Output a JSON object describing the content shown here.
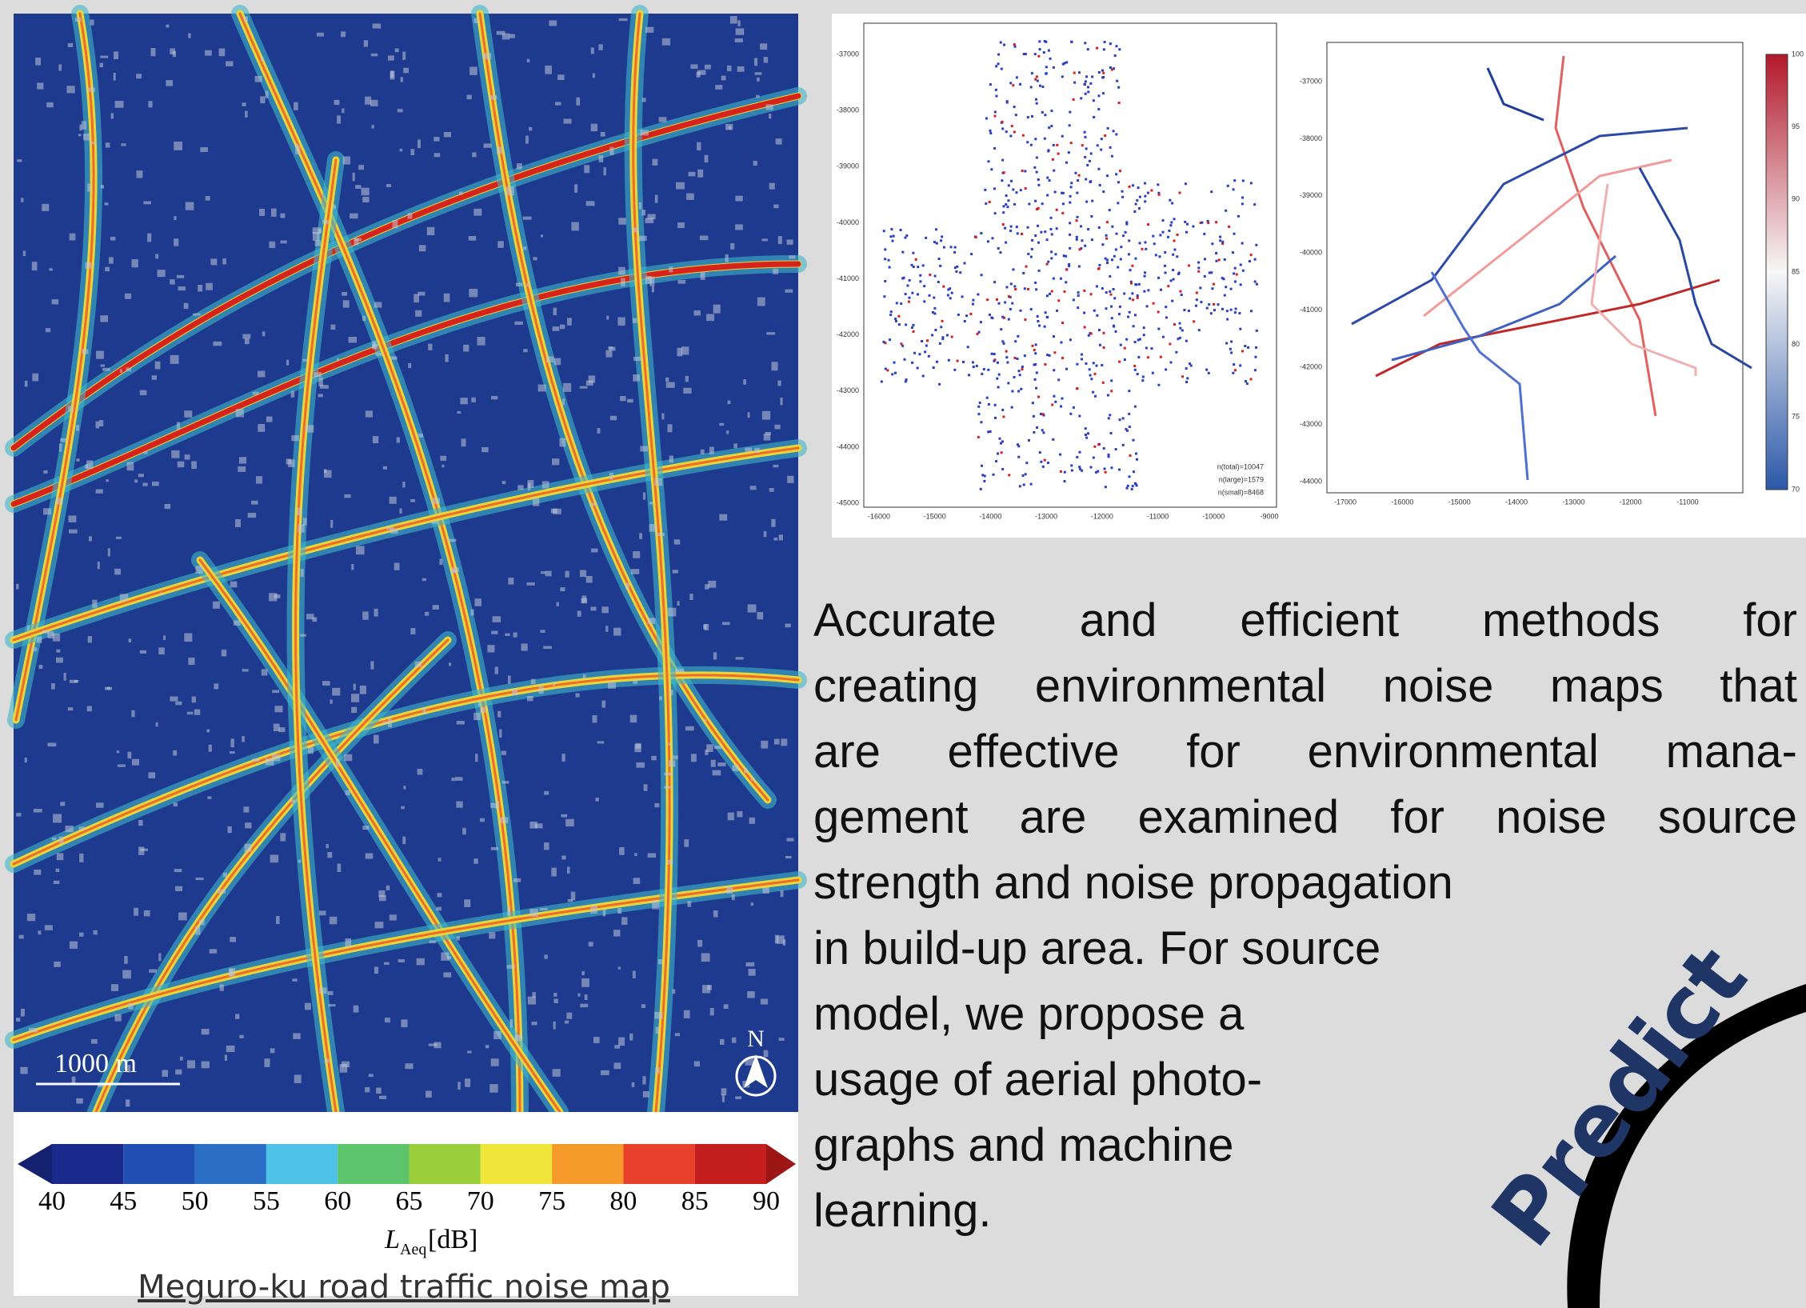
{
  "noise_map": {
    "scale_label": "1000 m",
    "north_label": "N",
    "colorbar_ticks": [
      40,
      45,
      50,
      55,
      60,
      65,
      70,
      75,
      80,
      85,
      90
    ],
    "colorbar_unit": "[dB]",
    "colorbar_symbol": "L",
    "colorbar_subscript": "Aeq",
    "caption": "Meguro-ku road traffic noise map"
  },
  "scatter_plot": {
    "yticks": [
      -37000,
      -38000,
      -39000,
      -40000,
      -41000,
      -42000,
      -43000,
      -44000,
      -45000
    ],
    "xticks": [
      -16000,
      -15000,
      -14000,
      -13000,
      -12000,
      -11000,
      -10000,
      -9000
    ],
    "legend": [
      "n(total)=10047",
      "n(large)=1579",
      "n(small)=8468"
    ]
  },
  "line_plot": {
    "yticks": [
      -37000,
      -38000,
      -39000,
      -40000,
      -41000,
      -42000,
      -43000,
      -44000
    ],
    "xticks": [
      -17000,
      -16000,
      -15000,
      -14000,
      -13000,
      -12000,
      -11000
    ],
    "colorbar_ticks": [
      100,
      95,
      90,
      85,
      80,
      75,
      70
    ]
  },
  "paragraph": {
    "lines": [
      "Accurate and efficient methods for",
      "creating environmental noise maps that",
      "are effective for environmental mana-",
      "gement are examined for noise source",
      "strength and noise propagation",
      "in build-up area. For source",
      "model, we propose a",
      "usage of aerial photo-",
      "graphs and machine",
      "learning."
    ]
  },
  "badge": "Predict"
}
